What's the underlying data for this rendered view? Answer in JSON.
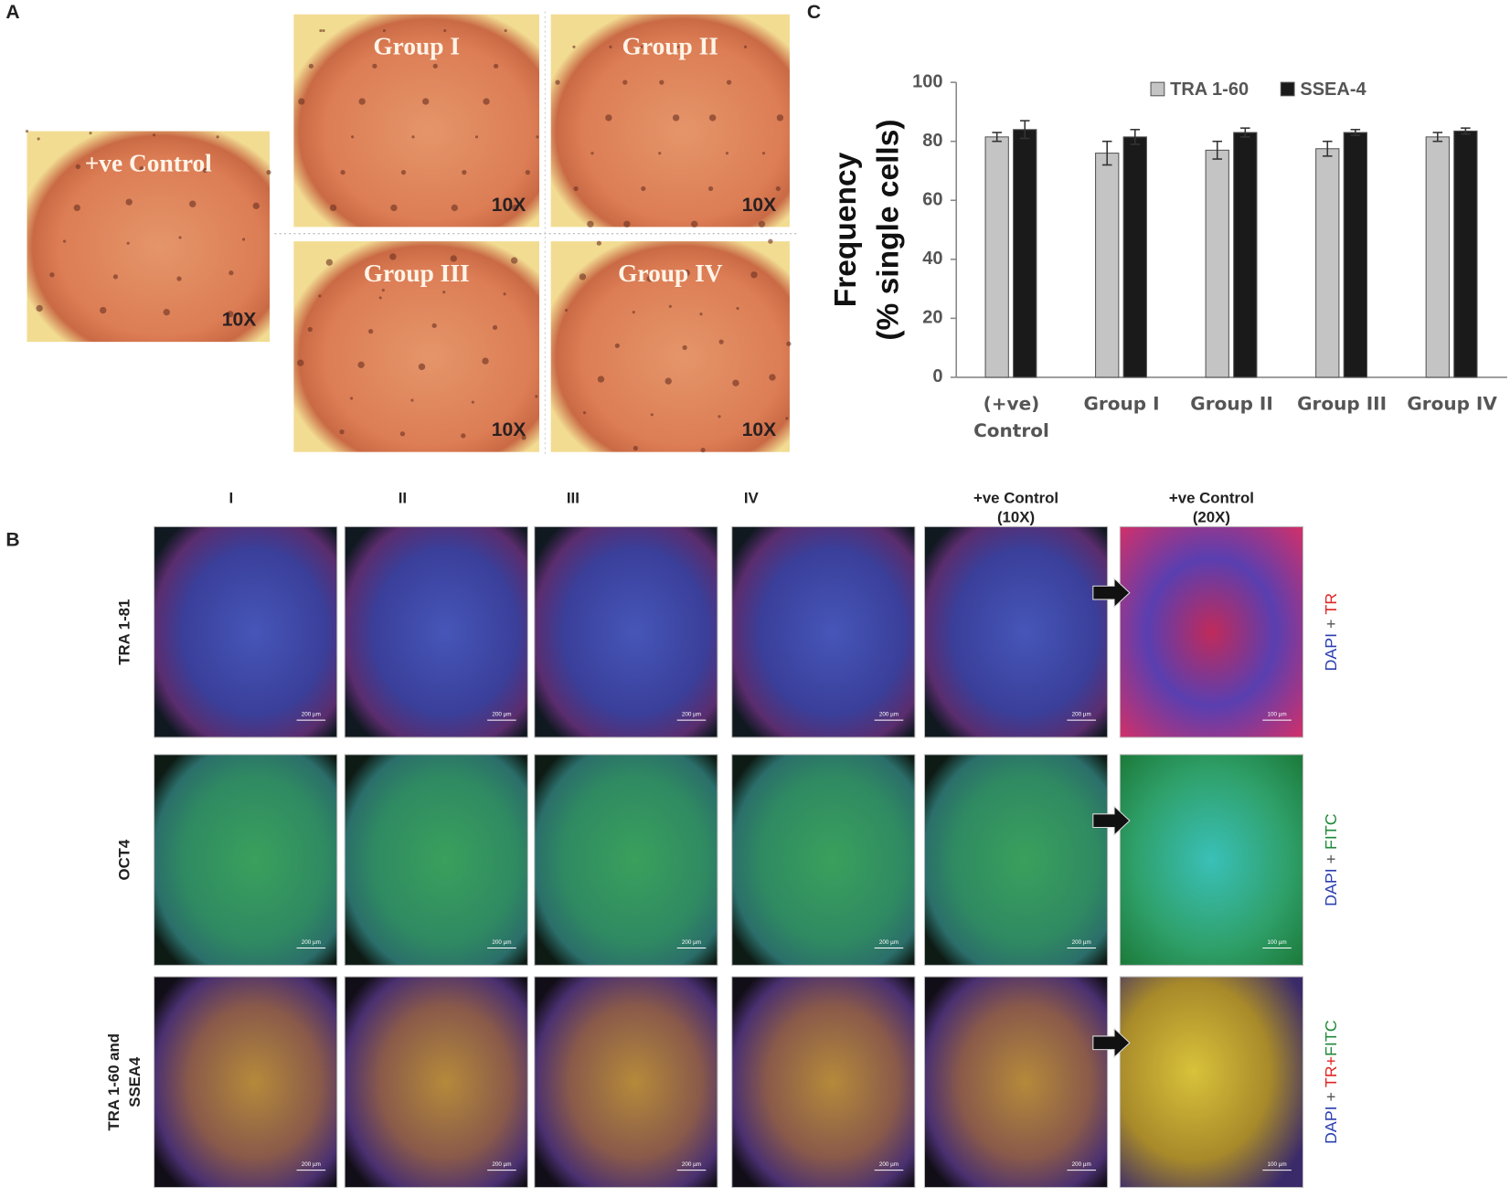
{
  "panels": {
    "a": {
      "label": "A",
      "images": [
        {
          "label": "+ve Control",
          "magnification": "10X"
        },
        {
          "label": "Group I",
          "magnification": "10X"
        },
        {
          "label": "Group II",
          "magnification": "10X"
        },
        {
          "label": "Group III",
          "magnification": "10X"
        },
        {
          "label": "Group IV",
          "magnification": "10X"
        }
      ]
    },
    "b": {
      "label": "B",
      "columns": [
        [
          "I"
        ],
        [
          "II"
        ],
        [
          "III"
        ],
        [
          "IV"
        ],
        [
          "+ve Control",
          "(10X)"
        ],
        [
          "+ve Control",
          "(20X)"
        ]
      ],
      "rows": [
        {
          "label": [
            "TRA 1-81"
          ],
          "stain": [
            {
              "text": "DAPI",
              "color": "#2b3fb0"
            },
            {
              "text": " + ",
              "color": "#555555"
            },
            {
              "text": "TR",
              "color": "#e02424"
            }
          ],
          "scale_bars": [
            "200 µm",
            "200 µm",
            "200 µm",
            "200 µm",
            "200 µm",
            "100 µm"
          ]
        },
        {
          "label": [
            "OCT4"
          ],
          "stain": [
            {
              "text": "DAPI",
              "color": "#2b3fb0"
            },
            {
              "text": " + ",
              "color": "#555555"
            },
            {
              "text": "FITC",
              "color": "#1f8a3a"
            }
          ],
          "scale_bars": [
            "200 µm",
            "200 µm",
            "200 µm",
            "200 µm",
            "200 µm",
            "100 µm"
          ]
        },
        {
          "label": [
            "TRA 1-60  and",
            "SSEA4"
          ],
          "stain": [
            {
              "text": "DAPI",
              "color": "#2b3fb0"
            },
            {
              "text": " + ",
              "color": "#555555"
            },
            {
              "text": "TR",
              "color": "#e02424"
            },
            {
              "text": "+",
              "color": "#e02424"
            },
            {
              "text": "FITC",
              "color": "#1f8a3a"
            }
          ],
          "scale_bars": [
            "200 µm",
            "200 µm",
            "200 µm",
            "200 µm",
            "200 µm",
            "100 µm"
          ]
        }
      ]
    },
    "c": {
      "label": "C"
    }
  },
  "chart_data": {
    "type": "bar",
    "y_label": [
      "Frequency",
      "(% single cells)"
    ],
    "categories": [
      "(+ve) Control",
      "Group I",
      "Group II",
      "Group III",
      "Group IV"
    ],
    "series": [
      {
        "name": "TRA 1-60",
        "color": "#c4c4c4",
        "values": [
          81.5,
          76,
          77,
          77.5,
          81.5
        ],
        "errors": [
          1.5,
          4,
          3,
          2.5,
          1.5
        ]
      },
      {
        "name": "SSEA-4",
        "color": "#1a1a1a",
        "values": [
          84,
          81.5,
          83,
          83,
          83.5
        ],
        "errors": [
          3,
          2.5,
          1.5,
          1,
          1
        ]
      }
    ],
    "ylim": [
      0,
      100
    ],
    "yticks": [
      0,
      20,
      40,
      60,
      80,
      100
    ],
    "legend": "top"
  }
}
